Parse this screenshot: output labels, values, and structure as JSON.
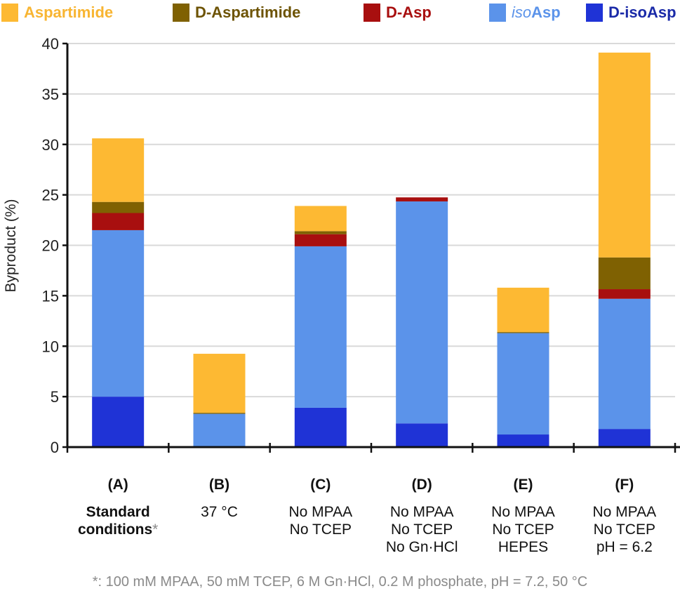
{
  "chart_data": {
    "type": "bar",
    "stacked": true,
    "title": "",
    "xlabel": "",
    "ylabel": "Byproduct (%)",
    "ylim": [
      0,
      40
    ],
    "yticks": [
      0,
      5,
      10,
      15,
      20,
      25,
      30,
      35,
      40
    ],
    "grid": true,
    "legend_position": "top",
    "categories": [
      "(A)",
      "(B)",
      "(C)",
      "(D)",
      "(E)",
      "(F)"
    ],
    "category_sublabels": [
      [
        "Standard",
        "conditions*"
      ],
      [
        "37 °C"
      ],
      [
        "No MPAA",
        "No TCEP"
      ],
      [
        "No MPAA",
        "No TCEP",
        "No Gn·HCl"
      ],
      [
        "No MPAA",
        "No TCEP",
        "HEPES"
      ],
      [
        "No MPAA",
        "No TCEP",
        "pH = 6.2"
      ]
    ],
    "series": [
      {
        "name": "D-isoAsp",
        "color": "#1f33d6",
        "values": [
          5.0,
          0.0,
          3.9,
          2.35,
          1.25,
          1.8
        ]
      },
      {
        "name": "isoAsp",
        "color": "#5b93ea",
        "values": [
          16.5,
          3.3,
          16.0,
          22.0,
          10.05,
          12.9
        ]
      },
      {
        "name": "D-Asp",
        "color": "#a80f0f",
        "values": [
          1.7,
          0.0,
          1.2,
          0.4,
          0.0,
          0.95
        ]
      },
      {
        "name": "D-Aspartimide",
        "color": "#7f6102",
        "values": [
          1.1,
          0.1,
          0.3,
          0.0,
          0.1,
          3.15
        ]
      },
      {
        "name": "Aspartimide",
        "color": "#fdb933",
        "values": [
          6.3,
          5.85,
          2.5,
          0.0,
          4.4,
          20.3
        ]
      }
    ],
    "footnote": "*: 100 mM MPAA, 50 mM TCEP, 6 M Gn·HCl, 0.2 M phosphate, pH = 7.2, 50 °C"
  },
  "legend": [
    {
      "label": "Aspartimide",
      "color": "#fdb933",
      "text_color": "#f8b532"
    },
    {
      "label": "D-Aspartimide",
      "color": "#7f6102",
      "text_color": "#6d5304"
    },
    {
      "label": "D-Asp",
      "color": "#a80f0f",
      "text_color": "#a80f0f"
    },
    {
      "label_italic": "iso",
      "label": "Asp",
      "color": "#5b93ea",
      "text_color": "#5b93ea"
    },
    {
      "label": "D-isoAsp",
      "color": "#1f33d6",
      "text_color": "#1a2aa8"
    }
  ]
}
